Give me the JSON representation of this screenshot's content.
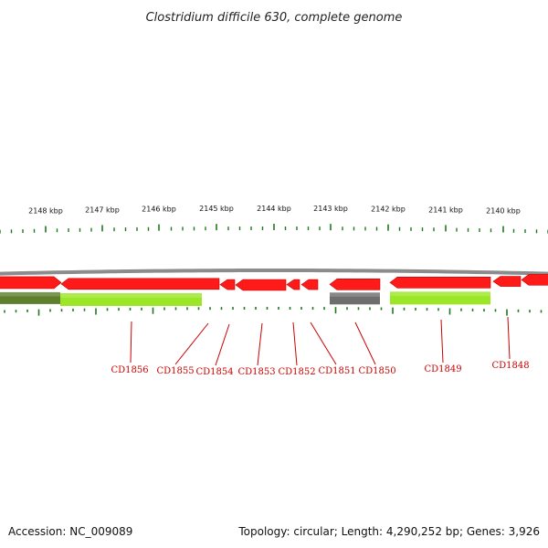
{
  "title": "Clostridium difficile 630, complete genome",
  "footer": {
    "accession": "Accession: NC_009089",
    "stats": "Topology: circular; Length: 4,290,252 bp; Genes: 3,926"
  },
  "colors": {
    "background": "#ffffff",
    "backbone": "#8c8c8c",
    "forward_gene": "#ff1a1a",
    "forward_gene_dark": "#c40000",
    "cds_match": "#9be626",
    "cds_match_dark": "#5e7f2c",
    "cds_nomatch": "#6e6e6e",
    "tick": "#1e7a1e",
    "label": "#cc0000"
  },
  "scale_labels": [
    "2148 kbp",
    "2147 kbp",
    "2146 kbp",
    "2145 kbp",
    "2144 kbp",
    "2143 kbp",
    "2142 kbp",
    "2141 kbp",
    "2140 kbp"
  ],
  "gene_labels": [
    "CD1856",
    "CD1855",
    "CD1854",
    "CD1853",
    "CD1852",
    "CD1851",
    "CD1850",
    "CD1849",
    "CD1848"
  ]
}
